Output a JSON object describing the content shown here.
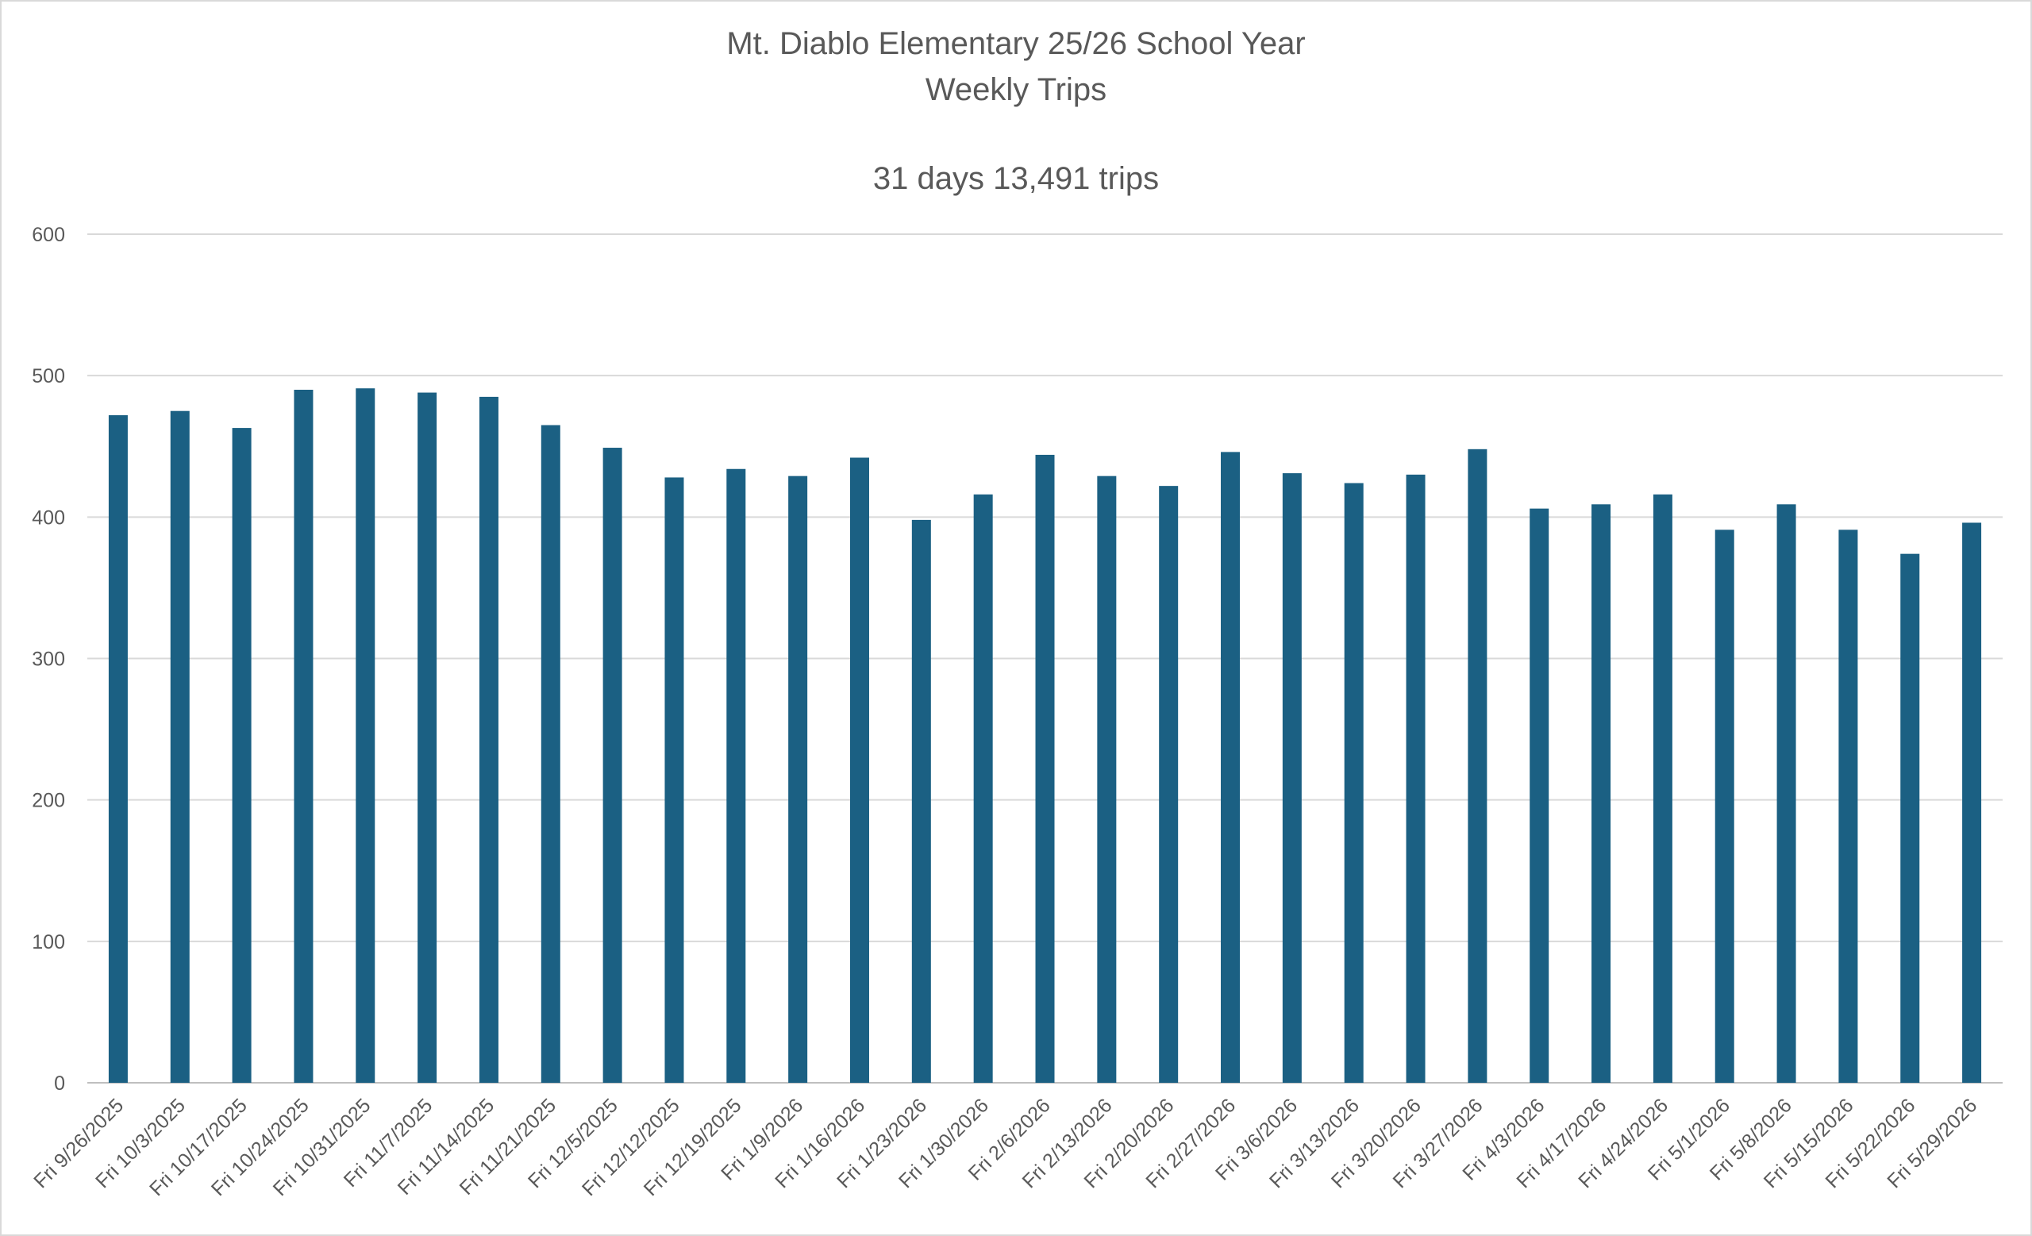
{
  "chart_data": {
    "type": "bar",
    "title": "Mt. Diablo Elementary 25/26 School Year",
    "subtitle": "Weekly Trips",
    "summary": "31 days 13,491 trips",
    "xlabel": "",
    "ylabel": "",
    "ylim": [
      0,
      600
    ],
    "yticks": [
      "0",
      "100",
      "200",
      "300",
      "400",
      "500",
      "600"
    ],
    "grid": true,
    "bar_color": "#1b6083",
    "categories": [
      "Fri 9/26/2025",
      "Fri 10/3/2025",
      "Fri 10/17/2025",
      "Fri 10/24/2025",
      "Fri 10/31/2025",
      "Fri 11/7/2025",
      "Fri 11/14/2025",
      "Fri 11/21/2025",
      "Fri 12/5/2025",
      "Fri 12/12/2025",
      "Fri 12/19/2025",
      "Fri 1/9/2026",
      "Fri 1/16/2026",
      "Fri 1/23/2026",
      "Fri 1/30/2026",
      "Fri 2/6/2026",
      "Fri 2/13/2026",
      "Fri 2/20/2026",
      "Fri 2/27/2026",
      "Fri 3/6/2026",
      "Fri 3/13/2026",
      "Fri 3/20/2026",
      "Fri 3/27/2026",
      "Fri 4/3/2026",
      "Fri 4/17/2026",
      "Fri 4/24/2026",
      "Fri 5/1/2026",
      "Fri 5/8/2026",
      "Fri 5/15/2026",
      "Fri 5/22/2026",
      "Fri 5/29/2026"
    ],
    "values": [
      472,
      475,
      463,
      490,
      491,
      488,
      485,
      465,
      449,
      428,
      434,
      429,
      442,
      398,
      416,
      444,
      429,
      422,
      446,
      431,
      424,
      430,
      448,
      406,
      409,
      416,
      391,
      409,
      391,
      374,
      396
    ]
  }
}
